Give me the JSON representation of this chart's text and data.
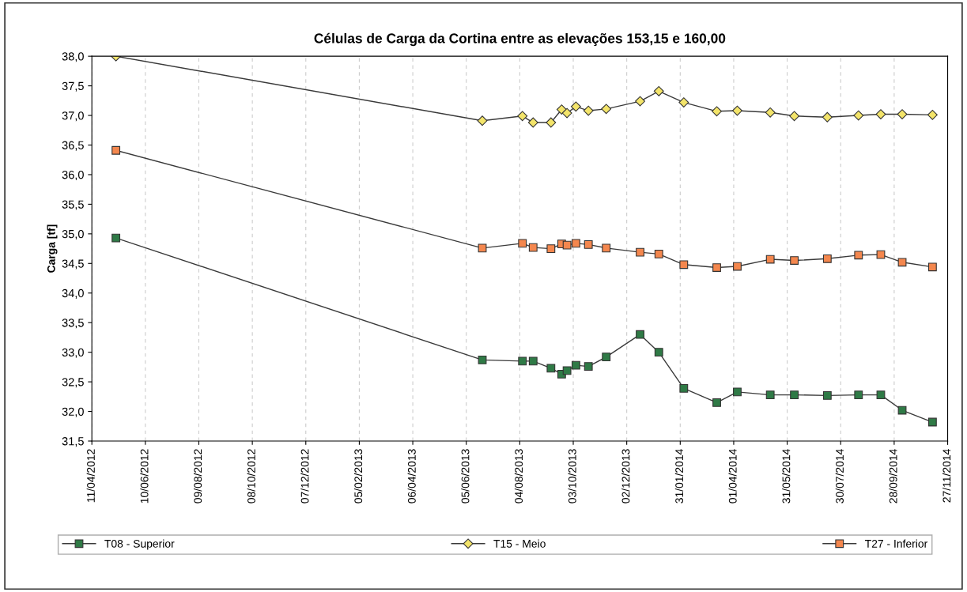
{
  "chart_data": {
    "type": "line",
    "title": "Células de Carga da Cortina entre as elevações 153,15 e 160,00",
    "ylabel": "Carga [tf]",
    "x": [
      "2012-05-08",
      "2013-06-23",
      "2013-08-07",
      "2013-08-19",
      "2013-09-08",
      "2013-09-20",
      "2013-09-26",
      "2013-10-06",
      "2013-10-20",
      "2013-11-09",
      "2013-12-17",
      "2014-01-07",
      "2014-02-04",
      "2014-03-13",
      "2014-04-05",
      "2014-05-12",
      "2014-06-08",
      "2014-07-15",
      "2014-08-19",
      "2014-09-13",
      "2014-10-07",
      "2014-11-10"
    ],
    "series": [
      {
        "name": "T08 - Superior",
        "color": "#2f7a46",
        "marker": "square",
        "values": [
          34.93,
          32.87,
          32.85,
          32.85,
          32.73,
          32.63,
          32.69,
          32.78,
          32.76,
          32.92,
          33.3,
          33.0,
          32.39,
          32.15,
          32.33,
          32.28,
          32.28,
          32.27,
          32.28,
          32.28,
          32.02,
          31.82
        ]
      },
      {
        "name": "T15 - Meio",
        "color": "#f3e46a",
        "marker": "diamond",
        "values": [
          38.0,
          36.91,
          36.99,
          36.88,
          36.88,
          37.1,
          37.04,
          37.15,
          37.08,
          37.11,
          37.24,
          37.41,
          37.22,
          37.07,
          37.08,
          37.05,
          36.99,
          36.97,
          37.0,
          37.02,
          37.02,
          37.01
        ]
      },
      {
        "name": "T27 - Inferior",
        "color": "#f4874e",
        "marker": "square",
        "values": [
          36.41,
          34.76,
          34.84,
          34.77,
          34.75,
          34.83,
          34.81,
          34.84,
          34.82,
          34.76,
          34.69,
          34.66,
          34.48,
          34.43,
          34.45,
          34.57,
          34.55,
          34.58,
          34.64,
          34.65,
          34.52,
          34.44
        ]
      }
    ],
    "xlim": [
      "2012-04-11",
      "2014-11-27"
    ],
    "xticks": [
      {
        "value": "2012-04-11",
        "label": "11/04/2012"
      },
      {
        "value": "2012-06-10",
        "label": "10/06/2012"
      },
      {
        "value": "2012-08-09",
        "label": "09/08/2012"
      },
      {
        "value": "2012-10-08",
        "label": "08/10/2012"
      },
      {
        "value": "2012-12-07",
        "label": "07/12/2012"
      },
      {
        "value": "2013-02-05",
        "label": "05/02/2013"
      },
      {
        "value": "2013-04-06",
        "label": "06/04/2013"
      },
      {
        "value": "2013-06-05",
        "label": "05/06/2013"
      },
      {
        "value": "2013-08-04",
        "label": "04/08/2013"
      },
      {
        "value": "2013-10-03",
        "label": "03/10/2013"
      },
      {
        "value": "2013-12-02",
        "label": "02/12/2013"
      },
      {
        "value": "2014-01-31",
        "label": "31/01/2014"
      },
      {
        "value": "2014-04-01",
        "label": "01/04/2014"
      },
      {
        "value": "2014-05-31",
        "label": "31/05/2014"
      },
      {
        "value": "2014-07-30",
        "label": "30/07/2014"
      },
      {
        "value": "2014-09-28",
        "label": "28/09/2014"
      },
      {
        "value": "2014-11-27",
        "label": "27/11/2014"
      }
    ],
    "ylim": [
      31.5,
      38.0
    ],
    "yticks": [
      {
        "value": 31.5,
        "label": "31,5"
      },
      {
        "value": 32.0,
        "label": "32,0"
      },
      {
        "value": 32.5,
        "label": "32,5"
      },
      {
        "value": 33.0,
        "label": "33,0"
      },
      {
        "value": 33.5,
        "label": "33,5"
      },
      {
        "value": 34.0,
        "label": "34,0"
      },
      {
        "value": 34.5,
        "label": "34,5"
      },
      {
        "value": 35.0,
        "label": "35,0"
      },
      {
        "value": 35.5,
        "label": "35,5"
      },
      {
        "value": 36.0,
        "label": "36,0"
      },
      {
        "value": 36.5,
        "label": "36,5"
      },
      {
        "value": 37.0,
        "label": "37,0"
      },
      {
        "value": 37.5,
        "label": "37,5"
      },
      {
        "value": 38.0,
        "label": "38,0"
      }
    ],
    "grid": "x",
    "legend": "bottom",
    "line_style": "solid"
  }
}
